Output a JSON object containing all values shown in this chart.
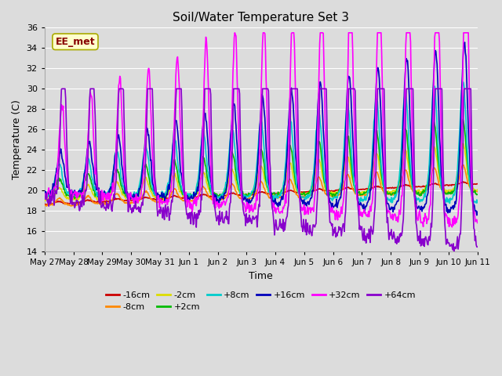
{
  "title": "Soil/Water Temperature Set 3",
  "xlabel": "Time",
  "ylabel": "Temperature (C)",
  "ylim": [
    14,
    36
  ],
  "yticks": [
    14,
    16,
    18,
    20,
    22,
    24,
    26,
    28,
    30,
    32,
    34,
    36
  ],
  "bg_color": "#dcdcdc",
  "annotation_text": "EE_met",
  "annotation_bg": "#ffffcc",
  "annotation_edge": "#aaaa00",
  "annotation_text_color": "#880000",
  "series_colors": {
    "-16cm": "#cc0000",
    "-8cm": "#ff8800",
    "-2cm": "#dddd00",
    "+2cm": "#00bb00",
    "+8cm": "#00cccc",
    "+16cm": "#0000bb",
    "+32cm": "#ff00ff",
    "+64cm": "#8800cc"
  },
  "x_tick_labels": [
    "May 27",
    "May 28",
    "May 29",
    "May 30",
    "May 31",
    "Jun 1",
    "Jun 2",
    "Jun 3",
    "Jun 4",
    "Jun 5",
    "Jun 6",
    "Jun 7",
    "Jun 8",
    "Jun 9",
    "Jun 10",
    "Jun 11"
  ]
}
